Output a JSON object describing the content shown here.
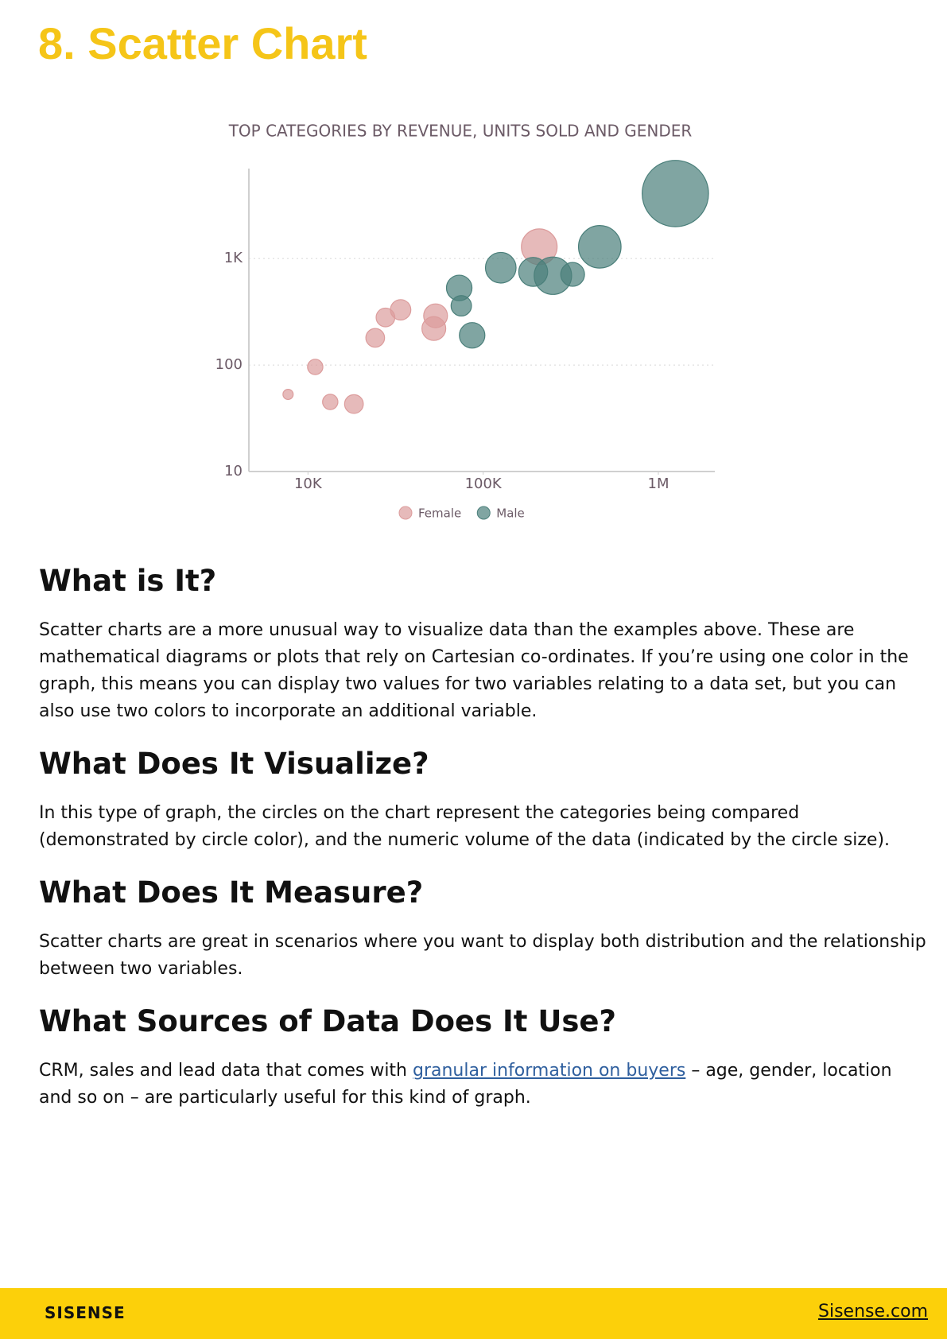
{
  "title": "8. Scatter Chart",
  "chart_data": {
    "type": "scatter",
    "title": "TOP CATEGORIES BY REVENUE, UNITS SOLD AND GENDER",
    "xscale": "log",
    "yscale": "log",
    "xlim": [
      4600,
      2100000
    ],
    "ylim": [
      10,
      7000
    ],
    "xticks": [
      {
        "value": 10000,
        "label": "10K"
      },
      {
        "value": 100000,
        "label": "100K"
      },
      {
        "value": 1000000,
        "label": "1M"
      }
    ],
    "yticks": [
      10,
      100,
      {
        "value": 1000,
        "label": "1K"
      }
    ],
    "grid": true,
    "legend": "bottom",
    "series": [
      {
        "name": "Female",
        "color": "#dc9c9c",
        "x": [
          7700,
          11000,
          13400,
          18300,
          24200,
          27700,
          33800,
          53500,
          52300,
          209000
        ],
        "values": [
          53,
          96,
          45,
          43,
          180,
          280,
          330,
          290,
          220,
          1290
        ],
        "sizes": [
          36,
          81,
          81,
          121,
          121,
          121,
          144,
          196,
          196,
          441
        ]
      },
      {
        "name": "Male",
        "color": "#4a7f7a",
        "x": [
          73000,
          75000,
          86500,
          126000,
          193000,
          250000,
          324000,
          463000,
          1250000
        ],
        "values": [
          530,
          360,
          190,
          820,
          750,
          690,
          710,
          1290,
          4080
        ],
        "sizes": [
          225,
          144,
          225,
          324,
          289,
          484,
          196,
          625,
          1521
        ]
      }
    ]
  },
  "sections": [
    {
      "heading": "What is It?",
      "paragraph": "Scatter charts are a more unusual way to visualize data than the examples above. These are mathematical diagrams or plots that rely on Cartesian co-ordinates. If you’re using one color in the graph, this means you can display two values for two variables relating to a data set, but you can also use two colors to incorporate an additional variable."
    },
    {
      "heading": "What Does It Visualize?",
      "paragraph": "In this type of graph, the circles on the chart represent the categories being compared (demonstrated by circle color), and the numeric volume of the data (indicated by the circle size)."
    },
    {
      "heading": "What Does It Measure?",
      "paragraph": "Scatter charts are great in scenarios where you want to display both distribution and the relationship between two variables."
    },
    {
      "heading": "What Sources of Data Does It Use?",
      "paragraph_start": "CRM, sales and lead data that comes with ",
      "link": "granular information on buyers",
      "paragraph_end": " – age, gender, location and so on – are particularly useful for this kind of graph."
    }
  ],
  "footer": {
    "logo": "SISENSE",
    "site": "Sisense.com"
  }
}
